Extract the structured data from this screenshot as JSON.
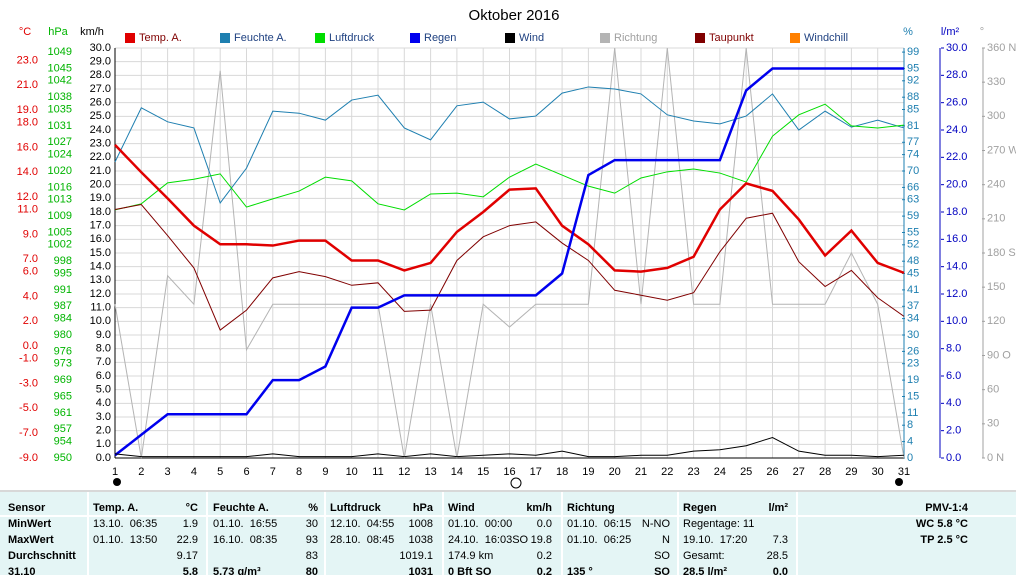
{
  "chart_data": {
    "type": "line",
    "title": "Oktober 2016",
    "x": [
      1,
      2,
      3,
      4,
      5,
      6,
      7,
      8,
      9,
      10,
      11,
      12,
      13,
      14,
      15,
      16,
      17,
      18,
      19,
      20,
      21,
      22,
      23,
      24,
      25,
      26,
      27,
      28,
      29,
      30,
      31
    ],
    "xlim": [
      1,
      31
    ],
    "axes": [
      {
        "unit": "°C",
        "color": "#e00000",
        "lim": [
          -9,
          24
        ],
        "ticks": [
          {
            "value": 23,
            "label": "23.0"
          },
          {
            "value": 21,
            "label": "21.0"
          },
          {
            "value": 19,
            "label": "19.0"
          },
          {
            "value": 18,
            "label": "18.0"
          },
          {
            "value": 16,
            "label": "16.0"
          },
          {
            "value": 14,
            "label": "14.0"
          },
          {
            "value": 12,
            "label": "12.0"
          },
          {
            "value": 11,
            "label": "11.0"
          },
          {
            "value": 9,
            "label": "9.0"
          },
          {
            "value": 7,
            "label": "7.0"
          },
          {
            "value": 6,
            "label": "6.0"
          },
          {
            "value": 4,
            "label": "4.0"
          },
          {
            "value": 2,
            "label": "2.0"
          },
          {
            "value": 0,
            "label": "0.0"
          },
          {
            "value": -1,
            "label": "-1.0"
          },
          {
            "value": -3,
            "label": "-3.0"
          },
          {
            "value": -5,
            "label": "-5.0"
          },
          {
            "value": -7,
            "label": "-7.0"
          },
          {
            "value": -9,
            "label": "-9.0"
          }
        ]
      },
      {
        "unit": "hPa",
        "color": "#00b400",
        "lim": [
          950,
          1050
        ],
        "ticks": [
          1049,
          1045,
          1042,
          1038,
          1035,
          1031,
          1027,
          1024,
          1020,
          1016,
          1013,
          1009,
          1005,
          1002,
          998,
          995,
          991,
          987,
          984,
          980,
          976,
          973,
          969,
          965,
          961,
          957,
          954,
          950
        ]
      },
      {
        "unit": "km/h",
        "color": "#000000",
        "lim": [
          0,
          30
        ],
        "grid": true,
        "ticks": [
          {
            "value": 30,
            "label": "30.0"
          },
          {
            "value": 29,
            "label": "29.0"
          },
          {
            "value": 28,
            "label": "28.0"
          },
          {
            "value": 27,
            "label": "27.0"
          },
          {
            "value": 26,
            "label": "26.0"
          },
          {
            "value": 25,
            "label": "25.0"
          },
          {
            "value": 24,
            "label": "24.0"
          },
          {
            "value": 23,
            "label": "23.0"
          },
          {
            "value": 22,
            "label": "22.0"
          },
          {
            "value": 21,
            "label": "21.0"
          },
          {
            "value": 20,
            "label": "20.0"
          },
          {
            "value": 19,
            "label": "19.0"
          },
          {
            "value": 18,
            "label": "18.0"
          },
          {
            "value": 17,
            "label": "17.0"
          },
          {
            "value": 16,
            "label": "16.0"
          },
          {
            "value": 15,
            "label": "15.0"
          },
          {
            "value": 14,
            "label": "14.0"
          },
          {
            "value": 13,
            "label": "13.0"
          },
          {
            "value": 12,
            "label": "12.0"
          },
          {
            "value": 11,
            "label": "11.0"
          },
          {
            "value": 10,
            "label": "10.0"
          },
          {
            "value": 9,
            "label": "9.0"
          },
          {
            "value": 8,
            "label": "8.0"
          },
          {
            "value": 7,
            "label": "7.0"
          },
          {
            "value": 6,
            "label": "6.0"
          },
          {
            "value": 5,
            "label": "5.0"
          },
          {
            "value": 4,
            "label": "4.0"
          },
          {
            "value": 3,
            "label": "3.0"
          },
          {
            "value": 2,
            "label": "2.0"
          },
          {
            "value": 1,
            "label": "1.0"
          },
          {
            "value": 0,
            "label": "0.0"
          }
        ]
      },
      {
        "unit": "%",
        "color": "#1e7fb0",
        "lim": [
          0,
          100
        ],
        "ticks": [
          99,
          95,
          92,
          88,
          85,
          81,
          77,
          74,
          70,
          66,
          63,
          59,
          55,
          52,
          48,
          45,
          41,
          37,
          34,
          30,
          26,
          23,
          19,
          15,
          11,
          8,
          4,
          0
        ]
      },
      {
        "unit": "l/m²",
        "color": "#0000c0",
        "lim": [
          0,
          30
        ],
        "ticks": [
          {
            "value": 30,
            "label": "30.0"
          },
          {
            "value": 28,
            "label": "28.0"
          },
          {
            "value": 26,
            "label": "26.0"
          },
          {
            "value": 24,
            "label": "24.0"
          },
          {
            "value": 22,
            "label": "22.0"
          },
          {
            "value": 20,
            "label": "20.0"
          },
          {
            "value": 18,
            "label": "18.0"
          },
          {
            "value": 16,
            "label": "16.0"
          },
          {
            "value": 14,
            "label": "14.0"
          },
          {
            "value": 12,
            "label": "12.0"
          },
          {
            "value": 10,
            "label": "10.0"
          },
          {
            "value": 8,
            "label": "8.0"
          },
          {
            "value": 6,
            "label": "6.0"
          },
          {
            "value": 4,
            "label": "4.0"
          },
          {
            "value": 2,
            "label": "2.0"
          },
          {
            "value": 0,
            "label": "0.0"
          }
        ]
      },
      {
        "unit": "°",
        "color": "#a0a0a0",
        "lim": [
          0,
          360
        ],
        "ticks": [
          {
            "value": 360,
            "label": "360 N"
          },
          330,
          300,
          {
            "value": 270,
            "label": "270 W"
          },
          240,
          210,
          {
            "value": 180,
            "label": "180 S"
          },
          150,
          120,
          {
            "value": 90,
            "label": "90 O"
          },
          60,
          30,
          {
            "value": 0,
            "label": "0 N"
          }
        ]
      }
    ],
    "series": [
      {
        "name": "Temp. A.",
        "color": "#e00000",
        "axis": 0,
        "width": 2.5,
        "values": [
          16.2,
          14.0,
          11.9,
          9.7,
          8.2,
          8.2,
          8.1,
          8.5,
          8.5,
          6.9,
          6.9,
          6.1,
          6.7,
          9.2,
          10.8,
          12.6,
          12.7,
          9.7,
          8.2,
          6.1,
          6.0,
          6.3,
          7.2,
          11.0,
          13.1,
          12.5,
          10.2,
          7.3,
          9.3,
          6.7,
          5.9
        ]
      },
      {
        "name": "Feuchte A.",
        "color": "#1e7fb0",
        "axis": 3,
        "width": 1,
        "values": [
          72.2,
          85.4,
          82.0,
          80.5,
          62.2,
          70.7,
          84.6,
          84.1,
          82.4,
          87.3,
          88.5,
          80.5,
          77.6,
          85.9,
          86.8,
          82.7,
          83.4,
          89.0,
          90.5,
          90.0,
          88.8,
          83.7,
          82.2,
          81.5,
          83.4,
          88.8,
          80.0,
          84.6,
          80.7,
          82.4,
          80.5
        ]
      },
      {
        "name": "Luftdruck",
        "color": "#00dd00",
        "axis": 1,
        "width": 1,
        "values": [
          1010.5,
          1012.0,
          1017.1,
          1018.0,
          1019.3,
          1011.2,
          1013.2,
          1015.1,
          1018.5,
          1017.6,
          1012.0,
          1010.5,
          1014.4,
          1014.6,
          1013.7,
          1018.5,
          1021.7,
          1019.0,
          1016.3,
          1014.6,
          1018.3,
          1019.8,
          1020.5,
          1019.5,
          1017.3,
          1028.5,
          1033.7,
          1036.3,
          1031.0,
          1030.5,
          1031.2
        ]
      },
      {
        "name": "Regen",
        "color": "#0000ee",
        "axis": 4,
        "width": 2.5,
        "values": [
          0.2,
          1.7,
          3.2,
          3.2,
          3.2,
          3.2,
          5.7,
          5.7,
          6.7,
          11.0,
          11.0,
          11.9,
          11.9,
          11.9,
          11.9,
          11.9,
          11.9,
          13.5,
          20.7,
          21.8,
          21.8,
          21.8,
          21.8,
          21.8,
          26.9,
          28.5,
          28.5,
          28.5,
          28.5,
          28.5,
          28.5
        ]
      },
      {
        "name": "Wind",
        "color": "#000000",
        "axis": 2,
        "width": 1,
        "values": [
          0.3,
          0.1,
          0.1,
          0.1,
          0.1,
          0.1,
          0.3,
          0.1,
          0.1,
          0.1,
          0.3,
          0.1,
          0.3,
          0.1,
          0.2,
          0.3,
          0.2,
          0.5,
          0.1,
          0.1,
          0.2,
          0.2,
          0.5,
          0.6,
          0.9,
          1.5,
          0.5,
          0.2,
          0.2,
          0.1,
          0.2
        ]
      },
      {
        "name": "Richtung",
        "color": "#b4b4b4",
        "axis": 5,
        "width": 1,
        "values": [
          135,
          0,
          160,
          135,
          340,
          95,
          135,
          135,
          135,
          135,
          135,
          0,
          135,
          0,
          135,
          115,
          135,
          135,
          135,
          360,
          135,
          360,
          135,
          135,
          360,
          135,
          135,
          135,
          180,
          135,
          0
        ]
      },
      {
        "name": "Taupunkt",
        "color": "#800000",
        "axis": 0,
        "width": 1,
        "values": [
          11.0,
          11.4,
          8.9,
          6.3,
          1.3,
          2.9,
          5.5,
          6.0,
          5.6,
          4.9,
          5.1,
          2.8,
          2.9,
          6.9,
          8.8,
          9.7,
          10.0,
          8.3,
          6.9,
          4.5,
          4.1,
          3.7,
          4.3,
          7.6,
          10.3,
          10.7,
          6.8,
          4.8,
          6.1,
          3.9,
          2.4
        ]
      },
      {
        "name": "Windchill",
        "color": "#ff8000"
      }
    ]
  },
  "table": {
    "rows": [
      [
        "Sensor",
        "Temp. A.",
        "°C",
        "Feuchte A.",
        "%",
        "Luftdruck",
        "hPa",
        "Wind",
        "km/h",
        "Richtung",
        null,
        "Regen",
        "l/m²",
        "PMV-1:4"
      ],
      [
        "MinWert",
        "13.10.  06:35",
        "1.9",
        "01.10.  16:55",
        "30",
        "12.10.  04:55",
        "1008",
        "01.10.  00:00",
        "0.0",
        "01.10.  06:15",
        "N-NO",
        "Regentage: 11",
        null,
        "WC 5.8 °C"
      ],
      [
        "MaxWert",
        "01.10.  13:50",
        "22.9",
        "16.10.  08:35",
        "93",
        "28.10.  08:45",
        "1038",
        "24.10.  16:03SO",
        "19.8",
        "01.10.  06:25",
        "N",
        "19.10.  17:20",
        "7.3",
        "TP 2.5 °C"
      ],
      [
        "Durchschnitt",
        null,
        "9.17",
        null,
        "83",
        null,
        "1019.1",
        "174.9 km",
        "0.2",
        null,
        "SO",
        "Gesamt:",
        "28.5",
        null
      ],
      [
        "31.10",
        null,
        "5.8",
        "5.73 g/m³",
        "80",
        null,
        "1031",
        "0 Bft SO",
        "0.2",
        "135 °",
        "SO",
        "28.5 l/m²",
        "0.0",
        null
      ]
    ]
  }
}
